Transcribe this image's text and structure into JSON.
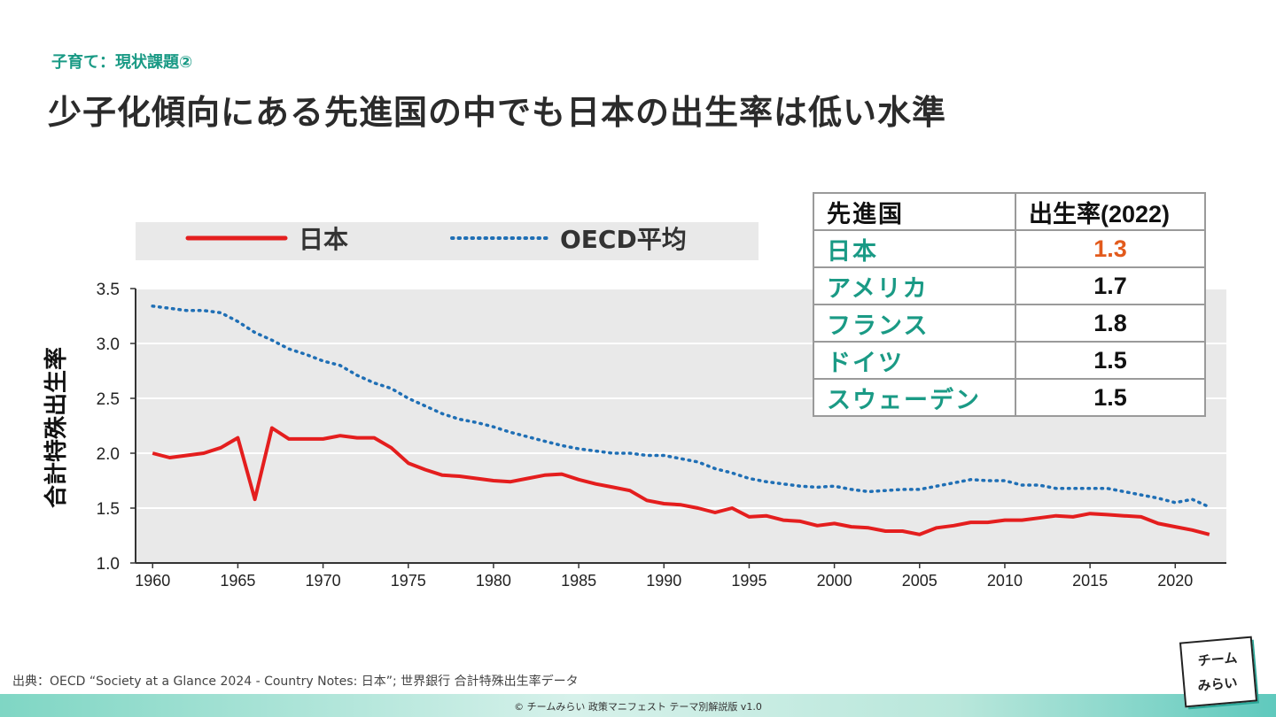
{
  "header": {
    "section_label": "子育て：現状課題②",
    "title": "少子化傾向にある先進国の中でも日本の出生率は低い水準"
  },
  "colors": {
    "japan_line": "#e41e1e",
    "oecd_line": "#1f6fb5",
    "accent_teal": "#1a9a85",
    "highlight_orange": "#e25a1c",
    "plot_background": "#e9e9e9"
  },
  "chart_data": {
    "type": "line",
    "ylabel": "合計特殊出生率",
    "xlabel": "",
    "ylim": [
      1.0,
      3.5
    ],
    "xlim": [
      1959,
      2023
    ],
    "y_ticks": [
      "1.0",
      "1.5",
      "2.0",
      "2.5",
      "3.0",
      "3.5"
    ],
    "x_ticks": [
      "1960",
      "1965",
      "1970",
      "1975",
      "1980",
      "1985",
      "1990",
      "1995",
      "2000",
      "2005",
      "2010",
      "2015",
      "2020"
    ],
    "grid": "horizontal",
    "legend_position": "top",
    "series": [
      {
        "name": "日本",
        "style": "solid",
        "x": [
          1960,
          1961,
          1962,
          1963,
          1964,
          1965,
          1966,
          1967,
          1968,
          1969,
          1970,
          1971,
          1972,
          1973,
          1974,
          1975,
          1976,
          1977,
          1978,
          1979,
          1980,
          1981,
          1982,
          1983,
          1984,
          1985,
          1986,
          1987,
          1988,
          1989,
          1990,
          1991,
          1992,
          1993,
          1994,
          1995,
          1996,
          1997,
          1998,
          1999,
          2000,
          2001,
          2002,
          2003,
          2004,
          2005,
          2006,
          2007,
          2008,
          2009,
          2010,
          2011,
          2012,
          2013,
          2014,
          2015,
          2016,
          2017,
          2018,
          2019,
          2020,
          2021,
          2022
        ],
        "y": [
          2.0,
          1.96,
          1.98,
          2.0,
          2.05,
          2.14,
          1.58,
          2.23,
          2.13,
          2.13,
          2.13,
          2.16,
          2.14,
          2.14,
          2.05,
          1.91,
          1.85,
          1.8,
          1.79,
          1.77,
          1.75,
          1.74,
          1.77,
          1.8,
          1.81,
          1.76,
          1.72,
          1.69,
          1.66,
          1.57,
          1.54,
          1.53,
          1.5,
          1.46,
          1.5,
          1.42,
          1.43,
          1.39,
          1.38,
          1.34,
          1.36,
          1.33,
          1.32,
          1.29,
          1.29,
          1.26,
          1.32,
          1.34,
          1.37,
          1.37,
          1.39,
          1.39,
          1.41,
          1.43,
          1.42,
          1.45,
          1.44,
          1.43,
          1.42,
          1.36,
          1.33,
          1.3,
          1.26
        ]
      },
      {
        "name": "OECD平均",
        "style": "dotted",
        "x": [
          1960,
          1961,
          1962,
          1963,
          1964,
          1965,
          1966,
          1967,
          1968,
          1969,
          1970,
          1971,
          1972,
          1973,
          1974,
          1975,
          1976,
          1977,
          1978,
          1979,
          1980,
          1981,
          1982,
          1983,
          1984,
          1985,
          1986,
          1987,
          1988,
          1989,
          1990,
          1991,
          1992,
          1993,
          1994,
          1995,
          1996,
          1997,
          1998,
          1999,
          2000,
          2001,
          2002,
          2003,
          2004,
          2005,
          2006,
          2007,
          2008,
          2009,
          2010,
          2011,
          2012,
          2013,
          2014,
          2015,
          2016,
          2017,
          2018,
          2019,
          2020,
          2021,
          2022
        ],
        "y": [
          3.34,
          3.32,
          3.3,
          3.3,
          3.28,
          3.2,
          3.1,
          3.03,
          2.95,
          2.9,
          2.84,
          2.8,
          2.71,
          2.64,
          2.59,
          2.5,
          2.43,
          2.36,
          2.31,
          2.28,
          2.24,
          2.19,
          2.15,
          2.11,
          2.07,
          2.04,
          2.02,
          2.0,
          2.0,
          1.98,
          1.98,
          1.95,
          1.92,
          1.86,
          1.82,
          1.77,
          1.74,
          1.72,
          1.7,
          1.69,
          1.7,
          1.67,
          1.65,
          1.66,
          1.67,
          1.67,
          1.7,
          1.73,
          1.76,
          1.75,
          1.75,
          1.71,
          1.71,
          1.68,
          1.68,
          1.68,
          1.68,
          1.65,
          1.62,
          1.59,
          1.55,
          1.58,
          1.51
        ]
      }
    ]
  },
  "rate_table": {
    "header": {
      "country": "先進国",
      "value": "出生率(2022)"
    },
    "rows": [
      {
        "country": "日本",
        "value": "1.3"
      },
      {
        "country": "アメリカ",
        "value": "1.7"
      },
      {
        "country": "フランス",
        "value": "1.8"
      },
      {
        "country": "ドイツ",
        "value": "1.5"
      },
      {
        "country": "スウェーデン",
        "value": "1.5"
      }
    ]
  },
  "source_note": "出典：OECD “Society at a Glance 2024 - Country Notes: 日本”; 世界銀行 合計特殊出生率データ",
  "footer": {
    "copyright": "© チームみらい 政策マニフェスト テーマ別解説版 v1.0",
    "logo_line1": "チーム",
    "logo_line2": "みらい"
  }
}
